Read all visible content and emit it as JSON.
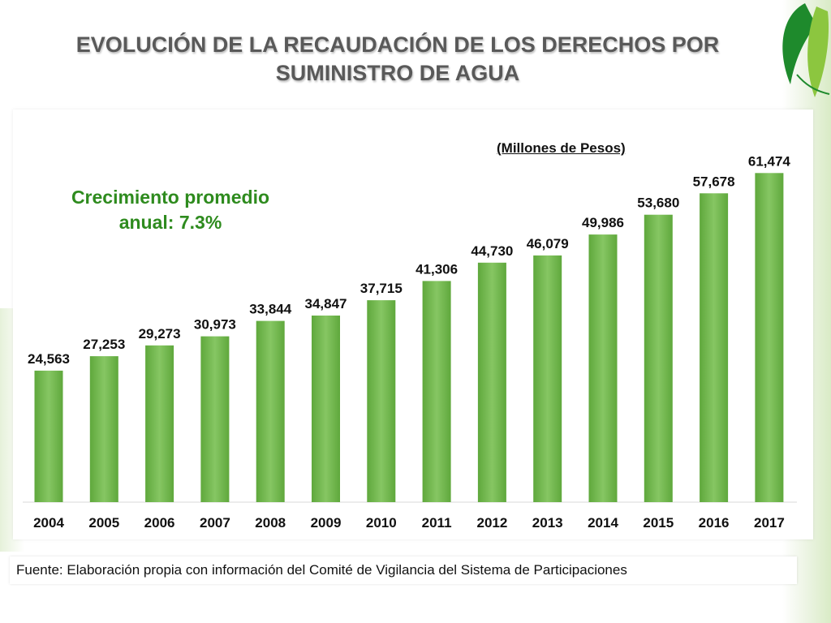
{
  "slide": {
    "title": "EVOLUCIÓN DE LA RECAUDACIÓN DE LOS DERECHOS POR SUMINISTRO DE AGUA",
    "growth_note": "Crecimiento promedio anual: 7.3%",
    "units": "(Millones de Pesos)",
    "source": "Fuente: Elaboración propia con información del Comité de Vigilancia del Sistema de Participaciones"
  },
  "colors": {
    "bar": "#6fb34a",
    "bar_light": "#86c663",
    "title": "#595959",
    "growth": "#2e8b1e",
    "logo_dark": "#1e8a2c",
    "logo_light": "#8cc63f"
  },
  "chart_data": {
    "type": "bar",
    "title": "EVOLUCIÓN DE LA RECAUDACIÓN DE LOS DERECHOS POR SUMINISTRO DE AGUA",
    "xlabel": "",
    "ylabel": "(Millones de Pesos)",
    "categories": [
      "2004",
      "2005",
      "2006",
      "2007",
      "2008",
      "2009",
      "2010",
      "2011",
      "2012",
      "2013",
      "2014",
      "2015",
      "2016",
      "2017"
    ],
    "values": [
      24563,
      27253,
      29273,
      30973,
      33844,
      34847,
      37715,
      41306,
      44730,
      46079,
      49986,
      53680,
      57678,
      61474
    ],
    "data_labels": [
      "24,563",
      "27,253",
      "29,273",
      "30,973",
      "33,844",
      "34,847",
      "37,715",
      "41,306",
      "44,730",
      "46,079",
      "49,986",
      "53,680",
      "57,678",
      "61,474"
    ],
    "ylim": [
      0,
      70000
    ],
    "grid": false,
    "legend": "none"
  }
}
